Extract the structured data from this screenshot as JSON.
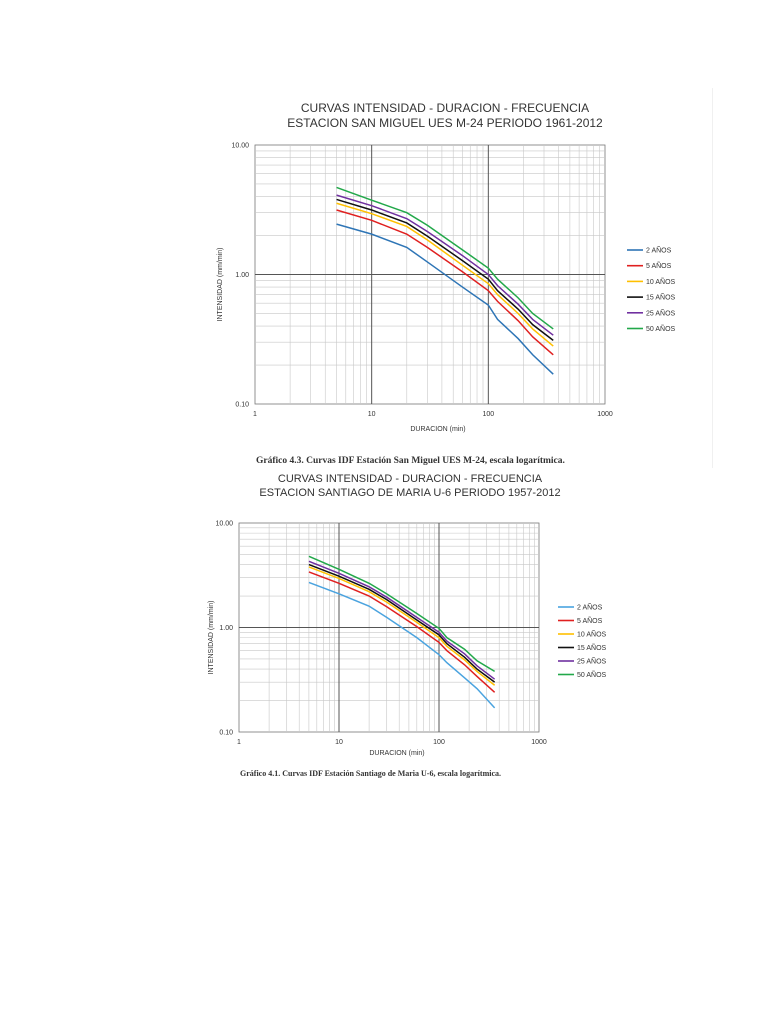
{
  "chart_data": [
    {
      "type": "line",
      "title": "CURVAS INTENSIDAD - DURACION - FRECUENCIA",
      "subtitle": "ESTACION SAN MIGUEL UES M-24 PERIODO 1961-2012",
      "xlabel": "DURACION (min)",
      "ylabel": "INTENSIDAD (mm/min)",
      "xscale": "log",
      "yscale": "log",
      "xlim": [
        1,
        1000
      ],
      "ylim": [
        0.1,
        10
      ],
      "x_tick_labels": [
        "1",
        "10",
        "100",
        "1000"
      ],
      "y_tick_labels": [
        "0.10",
        "1.00",
        "10.00"
      ],
      "legend_position": "right",
      "x": [
        5,
        10,
        20,
        30,
        60,
        100,
        120,
        180,
        240,
        360
      ],
      "series": [
        {
          "name": "2 AÑOS",
          "color": "#2e75b6",
          "values": [
            2.45,
            2.05,
            1.62,
            1.25,
            0.8,
            0.58,
            0.45,
            0.32,
            0.24,
            0.17
          ]
        },
        {
          "name": "5 AÑOS",
          "color": "#e02020",
          "values": [
            3.15,
            2.62,
            2.05,
            1.62,
            1.05,
            0.75,
            0.62,
            0.44,
            0.33,
            0.24
          ]
        },
        {
          "name": "10 AÑOS",
          "color": "#ffc000",
          "values": [
            3.55,
            2.95,
            2.35,
            1.85,
            1.18,
            0.85,
            0.7,
            0.5,
            0.38,
            0.28
          ]
        },
        {
          "name": "15 AÑOS",
          "color": "#111111",
          "values": [
            3.8,
            3.15,
            2.5,
            1.98,
            1.28,
            0.92,
            0.75,
            0.54,
            0.41,
            0.31
          ]
        },
        {
          "name": "25 AÑOS",
          "color": "#7030a0",
          "values": [
            4.1,
            3.4,
            2.7,
            2.15,
            1.4,
            1.0,
            0.82,
            0.59,
            0.45,
            0.34
          ]
        },
        {
          "name": "50 AÑOS",
          "color": "#22a84a",
          "values": [
            4.7,
            3.75,
            3.0,
            2.4,
            1.55,
            1.12,
            0.92,
            0.66,
            0.5,
            0.38
          ]
        }
      ],
      "caption": "Gráfico 4.3. Curvas IDF Estación San Miguel UES M-24, escala logarítmica."
    },
    {
      "type": "line",
      "title": "CURVAS INTENSIDAD - DURACION - FRECUENCIA",
      "subtitle": "ESTACION SANTIAGO DE MARIA U-6 PERIODO 1957-2012",
      "xlabel": "DURACION (min)",
      "ylabel": "INTENSIDAD (mm/min)",
      "xscale": "log",
      "yscale": "log",
      "xlim": [
        1,
        1000
      ],
      "ylim": [
        0.1,
        10
      ],
      "x_tick_labels": [
        "1",
        "10",
        "100",
        "1000"
      ],
      "y_tick_labels": [
        "0.10",
        "1.00",
        "10.00"
      ],
      "legend_position": "right",
      "x": [
        5,
        10,
        20,
        30,
        60,
        100,
        120,
        180,
        240,
        360
      ],
      "series": [
        {
          "name": "2 AÑOS",
          "color": "#4aa3df",
          "values": [
            2.7,
            2.1,
            1.6,
            1.25,
            0.8,
            0.55,
            0.46,
            0.33,
            0.26,
            0.17
          ]
        },
        {
          "name": "5 AÑOS",
          "color": "#e02020",
          "values": [
            3.4,
            2.65,
            2.0,
            1.58,
            1.02,
            0.72,
            0.6,
            0.44,
            0.34,
            0.24
          ]
        },
        {
          "name": "10 AÑOS",
          "color": "#ffc000",
          "values": [
            3.8,
            2.95,
            2.2,
            1.75,
            1.12,
            0.8,
            0.66,
            0.49,
            0.38,
            0.28
          ]
        },
        {
          "name": "15 AÑOS",
          "color": "#111111",
          "values": [
            4.0,
            3.1,
            2.32,
            1.85,
            1.18,
            0.85,
            0.7,
            0.52,
            0.4,
            0.3
          ]
        },
        {
          "name": "25 AÑOS",
          "color": "#7030a0",
          "values": [
            4.3,
            3.3,
            2.45,
            1.95,
            1.25,
            0.9,
            0.74,
            0.56,
            0.43,
            0.32
          ]
        },
        {
          "name": "50 AÑOS",
          "color": "#22a84a",
          "values": [
            4.8,
            3.6,
            2.65,
            2.1,
            1.36,
            0.98,
            0.8,
            0.62,
            0.48,
            0.38
          ]
        }
      ],
      "caption": "Gráfico 4.1. Curvas IDF Estación Santiago de Maria U-6,  escala logarítmica."
    }
  ]
}
